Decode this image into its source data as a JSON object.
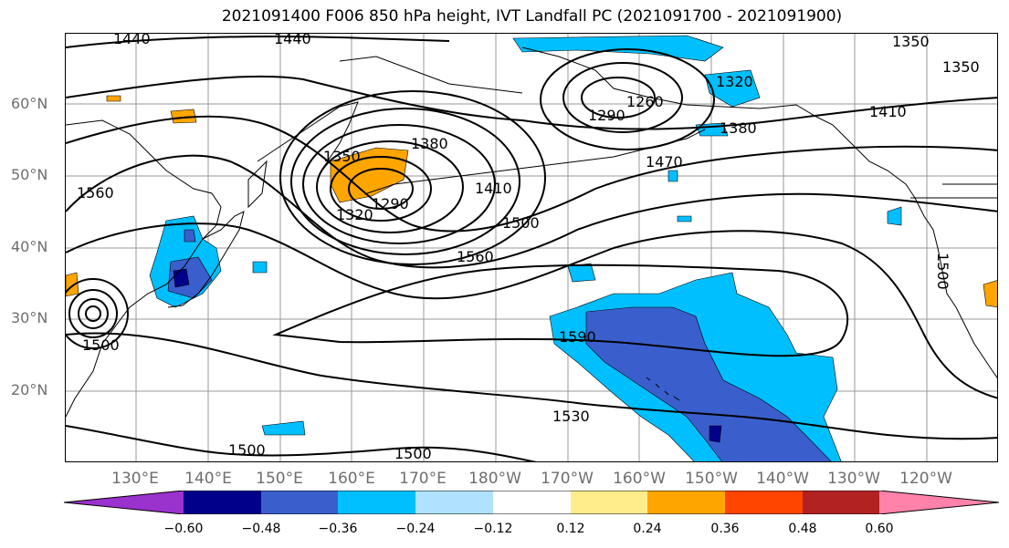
{
  "title": "2021091400 F006 850 hPa height, IVT Landfall PC (2021091700 - 2021091900)",
  "lat_labels": [
    "60°N",
    "50°N",
    "40°N",
    "30°N",
    "20°N"
  ],
  "lon_labels": [
    "130°E",
    "140°E",
    "150°E",
    "160°E",
    "170°E",
    "180°W",
    "170°W",
    "160°W",
    "150°W",
    "140°W",
    "130°W",
    "120°W"
  ],
  "contour_labels": {
    "l1440a": "1440",
    "l1440b": "1440",
    "l1350a": "1350",
    "l1350b": "1350",
    "l1320a": "1320",
    "l1290a": "1290",
    "l1260": "1260",
    "l1380b": "1380",
    "l1410b": "1410",
    "l1470": "1470",
    "l1350c": "1350",
    "l1380c": "1380",
    "l1410c": "1410",
    "l1320c": "1320",
    "l1290c": "1290",
    "l1500a": "1500",
    "l1560a": "1560",
    "l1560b": "1560",
    "l1590": "1590",
    "l1530": "1530",
    "l1500b": "1500",
    "l1500c": "1500",
    "l1500d": "1500",
    "l1500e": "1500"
  },
  "colorbar": {
    "ticks": [
      "−0.60",
      "−0.48",
      "−0.36",
      "−0.24",
      "−0.12",
      "0.12",
      "0.24",
      "0.36",
      "0.48",
      "0.60"
    ],
    "colors": [
      "#9a32cd",
      "#00008b",
      "#3a5fcd",
      "#00bfff",
      "#b0e2ff",
      "#ffffff",
      "#ffed8b",
      "#ffa500",
      "#ff4500",
      "#b22222",
      "#ff82ab"
    ]
  },
  "colors": {
    "neg_strong": "#3a5fcd",
    "neg_mid": "#00bfff",
    "neg_deep": "#00008b",
    "pos_mid": "#ffa500",
    "grid": "#999999",
    "contour": "#000000"
  }
}
